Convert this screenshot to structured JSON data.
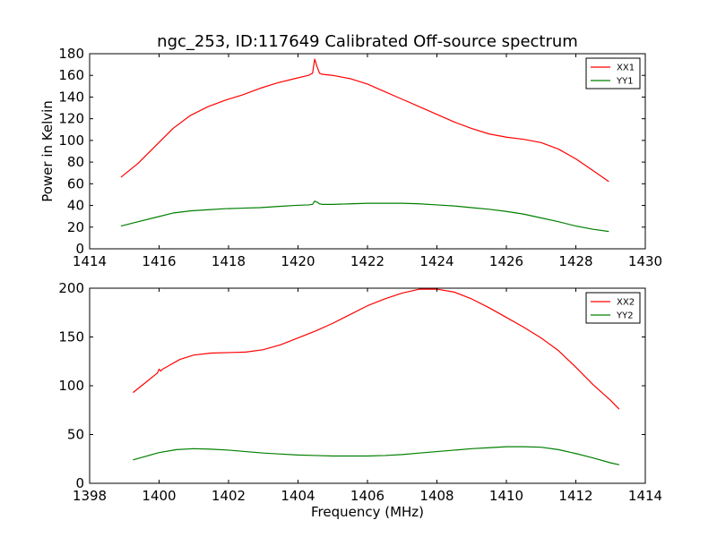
{
  "title": "ngc_253, ID:117649 Calibrated Off-source spectrum",
  "colors": {
    "XX": "#ff0000",
    "YY": "#007f00"
  },
  "chart_data": [
    {
      "type": "line",
      "title": "ngc_253, ID:117649 Calibrated Off-source spectrum",
      "xlabel": "",
      "ylabel": "Power in Kelvin",
      "xlim": [
        1414,
        1430
      ],
      "ylim": [
        0,
        180
      ],
      "xticks": [
        "1414",
        "1416",
        "1418",
        "1420",
        "1422",
        "1424",
        "1426",
        "1428",
        "1430"
      ],
      "yticks": [
        "0",
        "20",
        "40",
        "60",
        "80",
        "100",
        "120",
        "140",
        "160",
        "180"
      ],
      "legend": "top-right",
      "series": [
        {
          "name": "XX1",
          "color": "#ff0000",
          "x": [
            1414.9,
            1415.4,
            1415.9,
            1416.4,
            1416.9,
            1417.4,
            1417.9,
            1418.4,
            1418.9,
            1419.4,
            1419.9,
            1420.3,
            1420.42,
            1420.48,
            1420.55,
            1420.62,
            1420.7,
            1421.0,
            1421.5,
            1422.0,
            1422.5,
            1423.0,
            1423.5,
            1424.0,
            1424.5,
            1425.0,
            1425.5,
            1426.0,
            1426.5,
            1427.0,
            1427.5,
            1428.0,
            1428.5,
            1428.95
          ],
          "y": [
            66,
            79,
            95,
            111,
            123,
            131,
            137,
            142,
            148,
            153,
            157,
            160,
            162,
            175,
            168,
            162,
            161,
            160,
            157,
            152,
            145,
            138,
            131,
            124,
            117,
            111,
            106,
            103,
            101,
            98,
            92,
            83,
            72,
            62
          ]
        },
        {
          "name": "YY1",
          "color": "#007f00",
          "x": [
            1414.9,
            1415.4,
            1415.9,
            1416.4,
            1416.9,
            1417.4,
            1417.9,
            1418.4,
            1418.9,
            1419.4,
            1419.9,
            1420.3,
            1420.42,
            1420.48,
            1420.55,
            1420.62,
            1420.7,
            1421.0,
            1421.5,
            1422.0,
            1422.5,
            1423.0,
            1423.5,
            1424.0,
            1424.5,
            1425.0,
            1425.5,
            1426.0,
            1426.5,
            1427.0,
            1427.5,
            1428.0,
            1428.5,
            1428.95
          ],
          "y": [
            21,
            25,
            29,
            33,
            35,
            36,
            37,
            37.5,
            38,
            39,
            40,
            40.5,
            41,
            44,
            43,
            41.5,
            41,
            41,
            41.5,
            42,
            42,
            42,
            41.5,
            40.5,
            39.5,
            38,
            36.5,
            34.5,
            32,
            28.5,
            25,
            21,
            18,
            16
          ]
        }
      ]
    },
    {
      "type": "line",
      "title": "",
      "xlabel": "Frequency (MHz)",
      "ylabel": "",
      "xlim": [
        1398,
        1414
      ],
      "ylim": [
        0,
        200
      ],
      "xticks": [
        "1398",
        "1400",
        "1402",
        "1404",
        "1406",
        "1408",
        "1410",
        "1412",
        "1414"
      ],
      "yticks": [
        "0",
        "50",
        "100",
        "150",
        "200"
      ],
      "legend": "top-right",
      "series": [
        {
          "name": "XX2",
          "color": "#ff0000",
          "x": [
            1399.25,
            1399.6,
            1399.95,
            1400.0,
            1400.05,
            1400.1,
            1400.3,
            1400.6,
            1401.0,
            1401.5,
            1402.0,
            1402.5,
            1403.0,
            1403.5,
            1404.0,
            1404.5,
            1405.0,
            1405.5,
            1406.0,
            1406.5,
            1407.0,
            1407.5,
            1408.0,
            1408.5,
            1409.0,
            1409.5,
            1410.0,
            1410.5,
            1411.0,
            1411.5,
            1412.0,
            1412.5,
            1413.0,
            1413.25
          ],
          "y": [
            93,
            103,
            113,
            117,
            115,
            117,
            121,
            127,
            131.5,
            133.5,
            134,
            134.5,
            137,
            142,
            149,
            156,
            164,
            173,
            182,
            189,
            195,
            199,
            199,
            196,
            189,
            180,
            170,
            160,
            149,
            136,
            119,
            101,
            85,
            76
          ]
        },
        {
          "name": "YY2",
          "color": "#007f00",
          "x": [
            1399.25,
            1399.6,
            1400.0,
            1400.5,
            1401.0,
            1401.5,
            1402.0,
            1402.5,
            1403.0,
            1403.5,
            1404.0,
            1404.5,
            1405.0,
            1405.5,
            1406.0,
            1406.5,
            1407.0,
            1407.5,
            1408.0,
            1408.5,
            1409.0,
            1409.5,
            1410.0,
            1410.5,
            1411.0,
            1411.5,
            1412.0,
            1412.5,
            1413.0,
            1413.25
          ],
          "y": [
            24,
            27.5,
            31.5,
            34.5,
            35.5,
            35,
            34,
            32.5,
            31,
            30,
            29,
            28.5,
            28,
            28,
            28,
            28.5,
            29.5,
            31,
            32.5,
            34,
            35.5,
            36.5,
            37.5,
            37.5,
            37,
            34.5,
            30.5,
            26,
            21,
            19
          ]
        }
      ]
    }
  ]
}
